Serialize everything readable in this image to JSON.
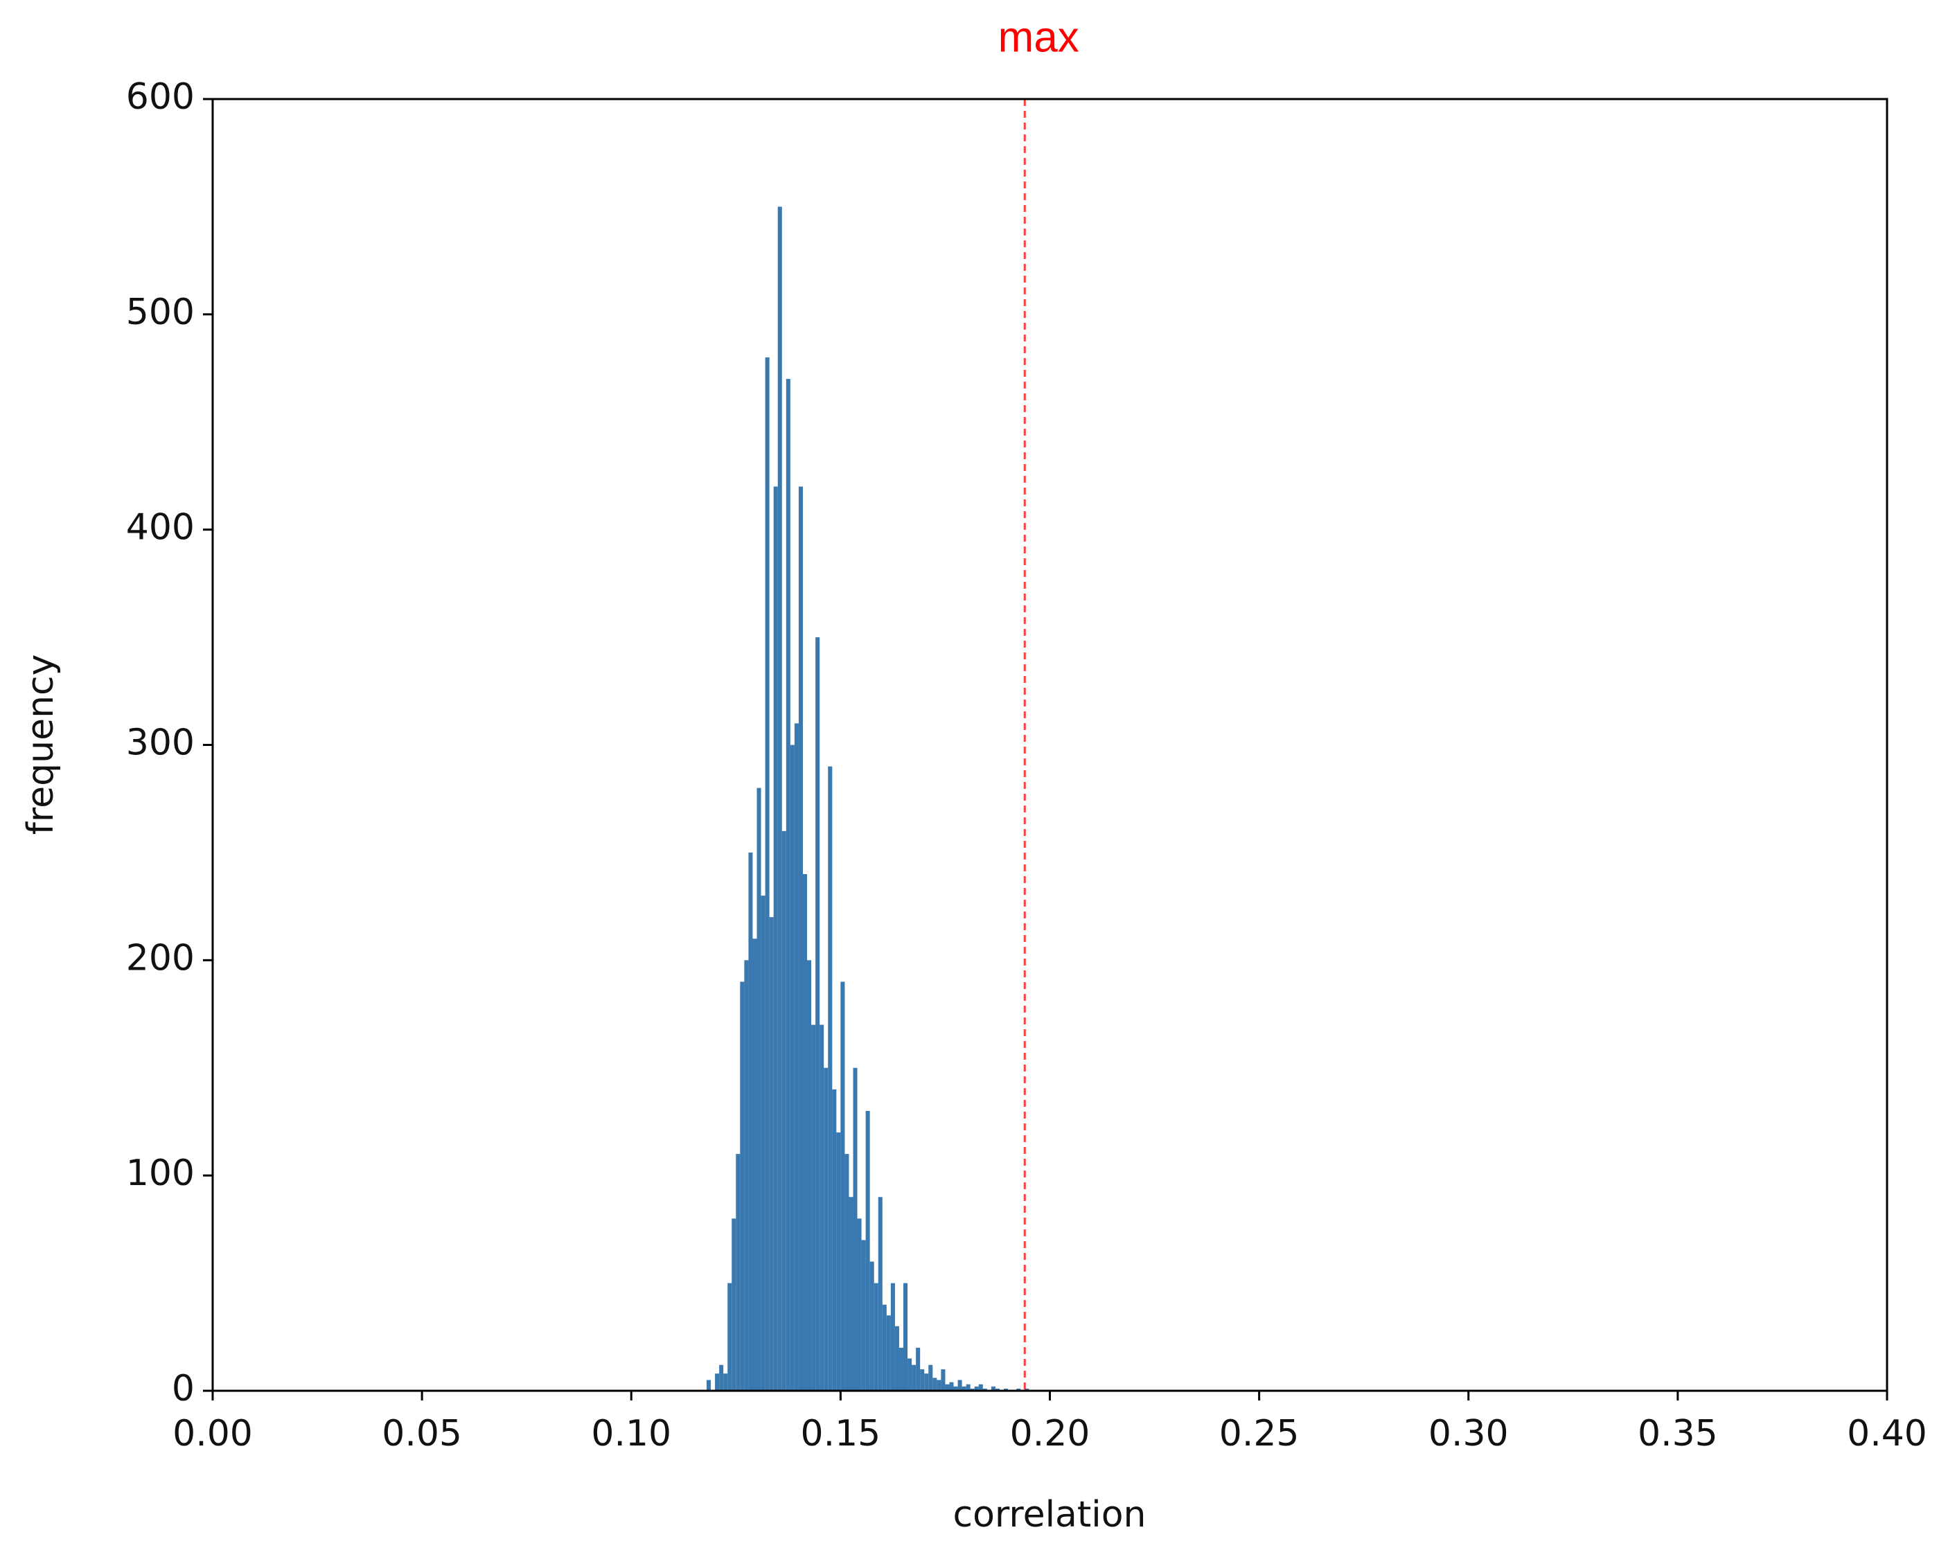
{
  "chart_data": {
    "type": "histogram",
    "xlabel": "correlation",
    "ylabel": "frequency",
    "color": "#3a78b0",
    "bins": [
      0.117,
      0.118,
      0.119,
      0.12,
      0.121,
      0.122,
      0.123,
      0.124,
      0.125,
      0.126,
      0.127,
      0.128,
      0.129,
      0.13,
      0.131,
      0.132,
      0.133,
      0.134,
      0.135,
      0.136,
      0.137,
      0.138,
      0.139,
      0.14,
      0.141,
      0.142,
      0.143,
      0.144,
      0.145,
      0.146,
      0.147,
      0.148,
      0.149,
      0.15,
      0.151,
      0.152,
      0.153,
      0.154,
      0.155,
      0.156,
      0.157,
      0.158,
      0.159,
      0.16,
      0.161,
      0.162,
      0.163,
      0.164,
      0.165,
      0.166,
      0.167,
      0.168,
      0.169,
      0.17,
      0.171,
      0.172,
      0.173,
      0.174,
      0.175,
      0.176,
      0.177,
      0.178,
      0.179,
      0.18,
      0.181,
      0.182,
      0.183,
      0.184,
      0.185,
      0.186,
      0.187,
      0.188,
      0.189,
      0.19,
      0.191,
      0.192,
      0.193,
      0.194,
      0.195
    ],
    "counts": [
      0,
      5,
      0,
      8,
      12,
      8,
      50,
      80,
      110,
      190,
      200,
      250,
      210,
      280,
      230,
      480,
      220,
      420,
      550,
      260,
      470,
      300,
      310,
      420,
      240,
      200,
      170,
      350,
      170,
      150,
      290,
      140,
      120,
      190,
      110,
      90,
      150,
      80,
      70,
      130,
      60,
      50,
      90,
      40,
      35,
      50,
      30,
      20,
      50,
      15,
      12,
      20,
      10,
      8,
      12,
      6,
      5,
      10,
      3,
      4,
      2,
      5,
      2,
      3,
      1,
      2,
      3,
      1,
      0,
      2,
      1,
      0,
      1,
      0,
      0,
      1,
      0,
      1
    ],
    "annotations": [
      {
        "text": "max",
        "x": 0.194,
        "color": "#ff0000"
      }
    ],
    "xlim": [
      0,
      0.4
    ],
    "xticks": [
      {
        "value": 0,
        "label": "0.00"
      },
      {
        "value": 0.05,
        "label": "0.05"
      },
      {
        "value": 0.1,
        "label": "0.10"
      },
      {
        "value": 0.15,
        "label": "0.15"
      },
      {
        "value": 0.2,
        "label": "0.20"
      },
      {
        "value": 0.25,
        "label": "0.25"
      },
      {
        "value": 0.3,
        "label": "0.30"
      },
      {
        "value": 0.35,
        "label": "0.35"
      },
      {
        "value": 0.4,
        "label": "0.40"
      }
    ],
    "ylim": [
      0,
      600
    ],
    "yticks": [
      0,
      100,
      200,
      300,
      400,
      500,
      600
    ]
  }
}
